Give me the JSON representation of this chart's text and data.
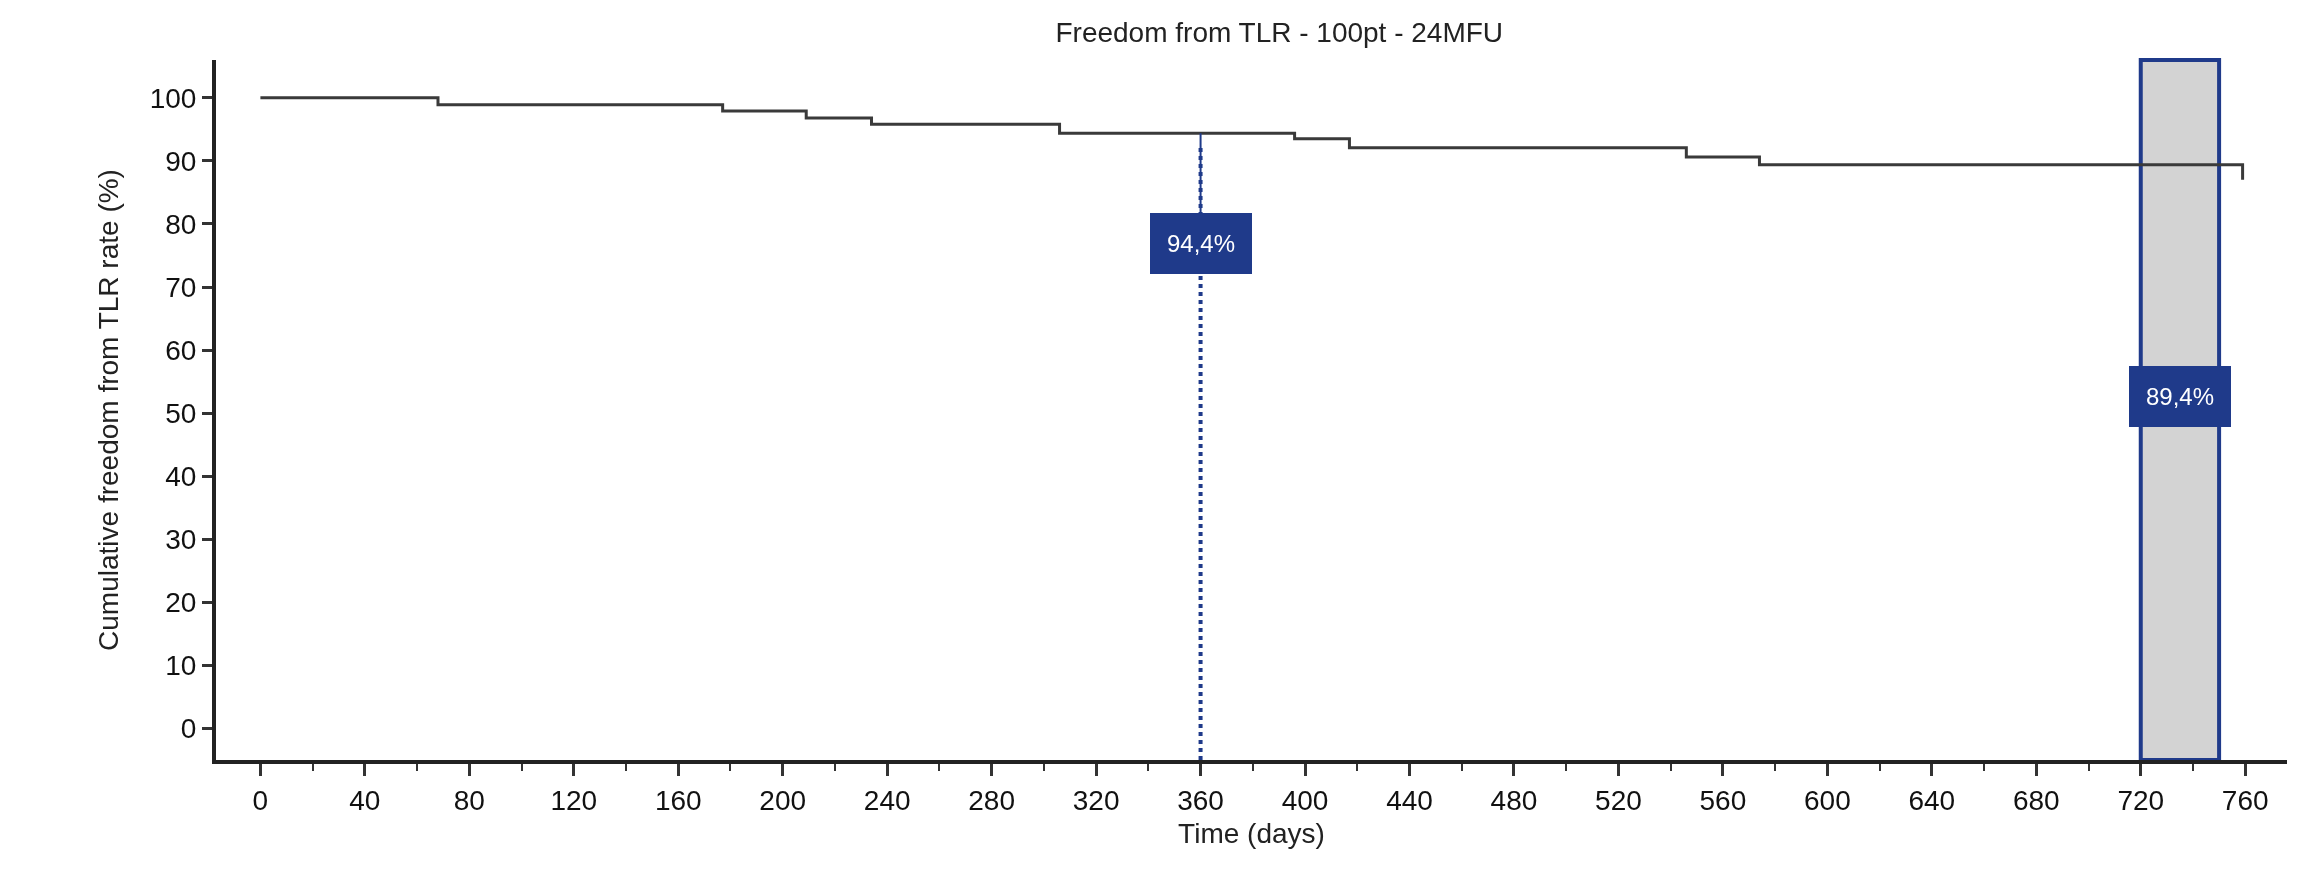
{
  "chart_data": {
    "type": "step",
    "title": "Freedom from TLR - 100pt - 24MFU",
    "xlabel": "Time (days)",
    "ylabel": "Cumulative freedom from TLR rate (%)",
    "x": [
      0,
      68,
      177,
      209,
      234,
      306,
      396,
      417,
      546,
      574,
      759
    ],
    "series": [
      {
        "color": "#3a3a3a",
        "values": [
          100,
          98.9,
          97.9,
          96.8,
          95.8,
          94.4,
          93.5,
          92.1,
          90.6,
          89.4,
          87
        ]
      }
    ],
    "xlim": [
      -17,
      776
    ],
    "ylim": [
      -5,
      106
    ],
    "xticks": [
      0,
      {
        "value": 20,
        "label": null
      },
      40,
      {
        "value": 60,
        "label": null
      },
      80,
      {
        "value": 100,
        "label": null
      },
      120,
      {
        "value": 140,
        "label": null
      },
      160,
      {
        "value": 180,
        "label": null
      },
      200,
      {
        "value": 220,
        "label": null
      },
      240,
      {
        "value": 260,
        "label": null
      },
      280,
      {
        "value": 300,
        "label": null
      },
      320,
      {
        "value": 340,
        "label": null
      },
      360,
      {
        "value": 380,
        "label": null
      },
      400,
      {
        "value": 420,
        "label": null
      },
      440,
      {
        "value": 460,
        "label": null
      },
      480,
      {
        "value": 500,
        "label": null
      },
      520,
      {
        "value": 540,
        "label": null
      },
      560,
      {
        "value": 580,
        "label": null
      },
      600,
      {
        "value": 620,
        "label": null
      },
      640,
      {
        "value": 660,
        "label": null
      },
      680,
      {
        "value": 700,
        "label": null
      },
      720,
      {
        "value": 740,
        "label": null
      },
      760
    ],
    "yticks": [
      0,
      10,
      20,
      30,
      40,
      50,
      60,
      70,
      80,
      90,
      100
    ],
    "grid": false,
    "marker": "none",
    "line_style": "solid",
    "ref_lines": [
      {
        "axis": "x",
        "value": 360,
        "color": "#1f3a8a",
        "line_style": "dotted"
      }
    ],
    "annotations": [
      {
        "text": "94,4%",
        "x": 360,
        "y": 94.4
      }
    ],
    "bands": [
      {
        "axis": "x",
        "from": 720,
        "to": 750,
        "label": "89,4%",
        "color": "#d3d3d3"
      }
    ]
  }
}
